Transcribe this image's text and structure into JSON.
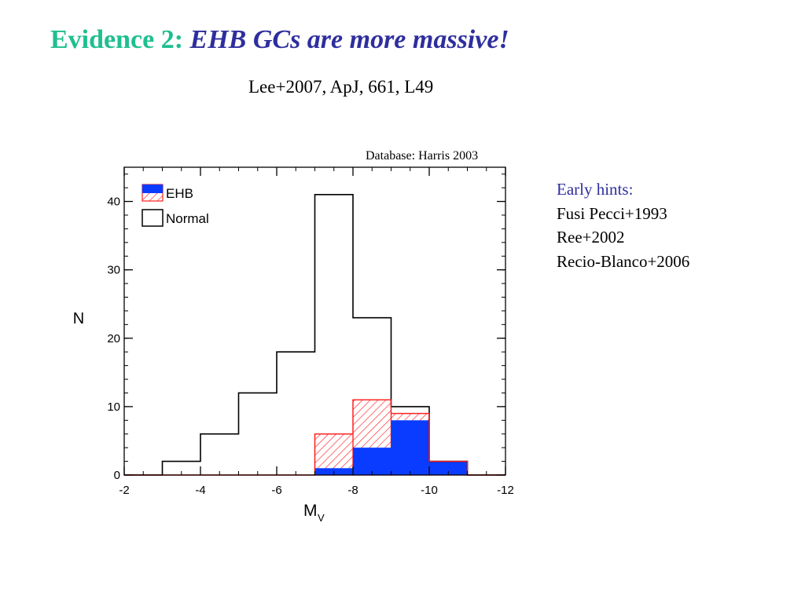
{
  "slide": {
    "title_prefix": "Evidence 2:",
    "title_main": "EHB GCs are more massive!",
    "reference": "Lee+2007, ApJ, 661, L49",
    "database_note": "Database: Harris 2003"
  },
  "hints": {
    "header": "Early hints:",
    "items": [
      "Fusi Pecci+1993",
      "Ree+2002",
      "Recio-Blanco+2006"
    ]
  },
  "colors": {
    "title_prefix": "#1fbf8f",
    "title_main": "#2e2e9e",
    "ehb_fill": "#0a3cff",
    "hatch": "#ff2020",
    "normal": "#000000"
  },
  "chart_data": {
    "type": "histogram",
    "ylabel": "N",
    "xlabel": "M",
    "xlabel_subscript": "V",
    "xlim": [
      -2,
      -12
    ],
    "ylim": [
      0,
      45
    ],
    "x_ticks": [
      -2,
      -4,
      -6,
      -8,
      -10,
      -12
    ],
    "y_ticks": [
      0,
      10,
      20,
      30,
      40
    ],
    "x_minor_step": 0.5,
    "y_minor_step": 2,
    "bin_edges": [
      -2,
      -3,
      -4,
      -5,
      -6,
      -7,
      -8,
      -9,
      -10,
      -11,
      -12
    ],
    "legend": {
      "placement": "top-left",
      "entries": [
        "EHB",
        "Normal"
      ]
    },
    "series": [
      {
        "name": "Normal",
        "style": "outline",
        "values": [
          0,
          2,
          6,
          12,
          18,
          41,
          23,
          10,
          2,
          0
        ]
      },
      {
        "name": "EHB",
        "style": "hatched",
        "values": [
          0,
          0,
          0,
          0,
          0,
          6,
          11,
          9,
          2,
          0
        ]
      },
      {
        "name": "EHB",
        "style": "solid",
        "values": [
          0,
          0,
          0,
          0,
          0,
          1,
          4,
          8,
          2,
          0
        ]
      }
    ]
  }
}
